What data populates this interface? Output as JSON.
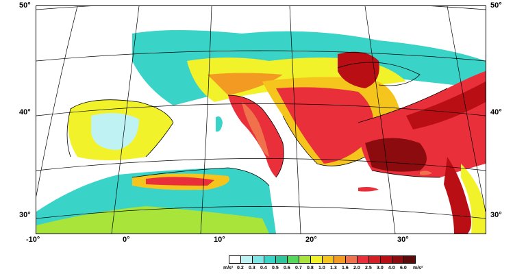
{
  "map": {
    "lat_labels_left": [
      "50°",
      "40°",
      "30°"
    ],
    "lat_labels_right": [
      "50°",
      "40°",
      "30°"
    ],
    "lon_labels": [
      "-10°",
      "0°",
      "10°",
      "20°",
      "30°"
    ]
  },
  "legend": {
    "unit_left": "m/s²",
    "unit_right": "m/s²",
    "values": [
      "0.2",
      "0.3",
      "0.4",
      "0.5",
      "0.6",
      "0.7",
      "0.8",
      "1.0",
      "1.3",
      "1.6",
      "2.0",
      "2.5",
      "3.0",
      "4.0",
      "6.0"
    ],
    "colors": [
      "#ffffff",
      "#bff3f3",
      "#7fe6e6",
      "#39d3c7",
      "#2ec59a",
      "#55d65c",
      "#a9e43b",
      "#f2f22b",
      "#f6c51d",
      "#f39a22",
      "#f0724c",
      "#e82f3a",
      "#d41e23",
      "#b80e14",
      "#8b0b0e",
      "#5a0a08"
    ]
  }
}
